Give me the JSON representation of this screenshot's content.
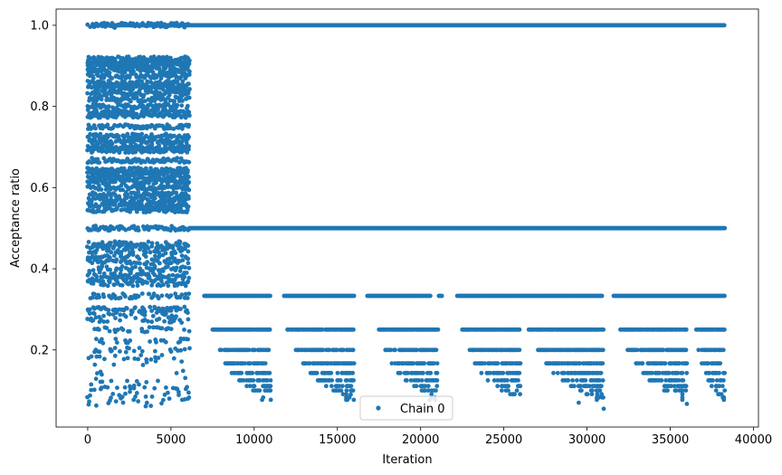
{
  "chart_data": {
    "type": "scatter",
    "title": "",
    "xlabel": "Iteration",
    "ylabel": "Acceptance ratio",
    "xlim": [
      -1900,
      40300
    ],
    "ylim": [
      0.01,
      1.04
    ],
    "xticks": [
      0,
      5000,
      10000,
      15000,
      20000,
      25000,
      30000,
      35000,
      40000
    ],
    "xtick_labels": [
      "0",
      "5000",
      "10000",
      "15000",
      "20000",
      "25000",
      "30000",
      "35000",
      "40000"
    ],
    "yticks": [
      0.2,
      0.4,
      0.6,
      0.8,
      1.0
    ],
    "ytick_labels": [
      "0.2",
      "0.4",
      "0.6",
      "0.8",
      "1.0"
    ],
    "grid": false,
    "legend_position": "bottom-center",
    "marker_color": "#1f77b4",
    "series": [
      {
        "name": "Chain 0",
        "early_phase": {
          "x_range": [
            0,
            6100
          ],
          "levels": [
            1.0,
            0.917,
            0.909,
            0.9,
            0.889,
            0.875,
            0.857,
            0.846,
            0.833,
            0.818,
            0.8,
            0.786,
            0.778,
            0.75,
            0.727,
            0.714,
            0.7,
            0.692,
            0.667,
            0.643,
            0.636,
            0.625,
            0.615,
            0.6,
            0.583,
            0.571,
            0.556,
            0.545,
            0.5,
            0.462,
            0.455,
            0.444,
            0.429,
            0.417,
            0.4,
            0.385,
            0.375,
            0.364,
            0.333,
            0.3,
            0.286,
            0.273,
            0.25,
            0.222,
            0.2,
            0.182,
            0.167,
            0.143,
            0.125,
            0.111,
            0.1,
            0.091,
            0.083,
            0.077,
            0.067
          ]
        },
        "late_phase": {
          "x_range": [
            6100,
            38300
          ],
          "continuous_levels": [
            1.0,
            0.5
          ],
          "segments_0_333": [
            [
              7000,
              11000
            ],
            [
              11800,
              16000
            ],
            [
              16800,
              20600
            ],
            [
              21100,
              21300
            ],
            [
              22200,
              30900
            ],
            [
              31600,
              38300
            ]
          ],
          "sparse_levels": [
            0.25,
            0.2,
            0.167,
            0.143,
            0.125,
            0.111,
            0.1,
            0.091,
            0.083,
            0.077
          ],
          "clusters": [
            [
              7500,
              11000
            ],
            [
              12000,
              16000
            ],
            [
              17500,
              21000
            ],
            [
              22500,
              26000
            ],
            [
              26500,
              31000
            ],
            [
              32000,
              36000
            ],
            [
              36500,
              38300
            ]
          ],
          "min_y": 0.05
        }
      }
    ]
  }
}
